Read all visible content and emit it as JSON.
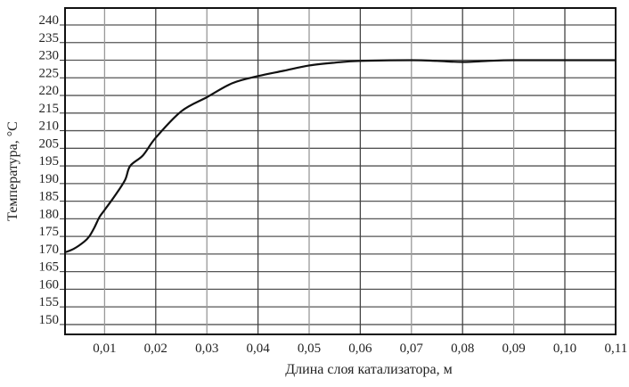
{
  "chart_data": {
    "type": "line",
    "title": "",
    "xlabel": "Длина слоя катализатора, м",
    "ylabel": "Температура, °C",
    "ylabel_main": "Температура,",
    "ylabel_sup": "0",
    "ylabel_unit": "C",
    "xlim": [
      0.0023,
      0.11
    ],
    "x_ticks": [
      "0,01",
      "0,02",
      "0,03",
      "0,04",
      "0,05",
      "0,06",
      "0,07",
      "0,08",
      "0,09",
      "0,10",
      "0,11"
    ],
    "x_tick_values": [
      0.01,
      0.02,
      0.03,
      0.04,
      0.05,
      0.06,
      0.07,
      0.08,
      0.09,
      0.1,
      0.11
    ],
    "y_ticks": [
      "240",
      "235",
      "230",
      "225",
      "220",
      "215",
      "210",
      "205",
      "195",
      "190",
      "185",
      "180",
      "175",
      "170",
      "165",
      "160",
      "155",
      "150"
    ],
    "y_tick_values": [
      240,
      235,
      230,
      225,
      220,
      215,
      210,
      205,
      195,
      190,
      185,
      180,
      175,
      170,
      165,
      160,
      155,
      150
    ],
    "grid": true,
    "legend": "none",
    "line_color": "#111111",
    "series": [
      {
        "x": [
          0.0023,
          0.004,
          0.006,
          0.007,
          0.008,
          0.009,
          0.01,
          0.012,
          0.014,
          0.015,
          0.0175,
          0.02,
          0.025,
          0.03,
          0.035,
          0.04,
          0.045,
          0.05,
          0.055,
          0.06,
          0.07,
          0.075,
          0.08,
          0.085,
          0.09,
          0.1,
          0.11
        ],
        "y": [
          170.5,
          171.5,
          173.5,
          175,
          177.5,
          180.5,
          182.5,
          186.5,
          191,
          195,
          201,
          208,
          215.5,
          219.5,
          223.5,
          225.5,
          227,
          228.5,
          229.3,
          229.8,
          230,
          229.8,
          229.5,
          229.8,
          230,
          230,
          230
        ]
      }
    ]
  }
}
